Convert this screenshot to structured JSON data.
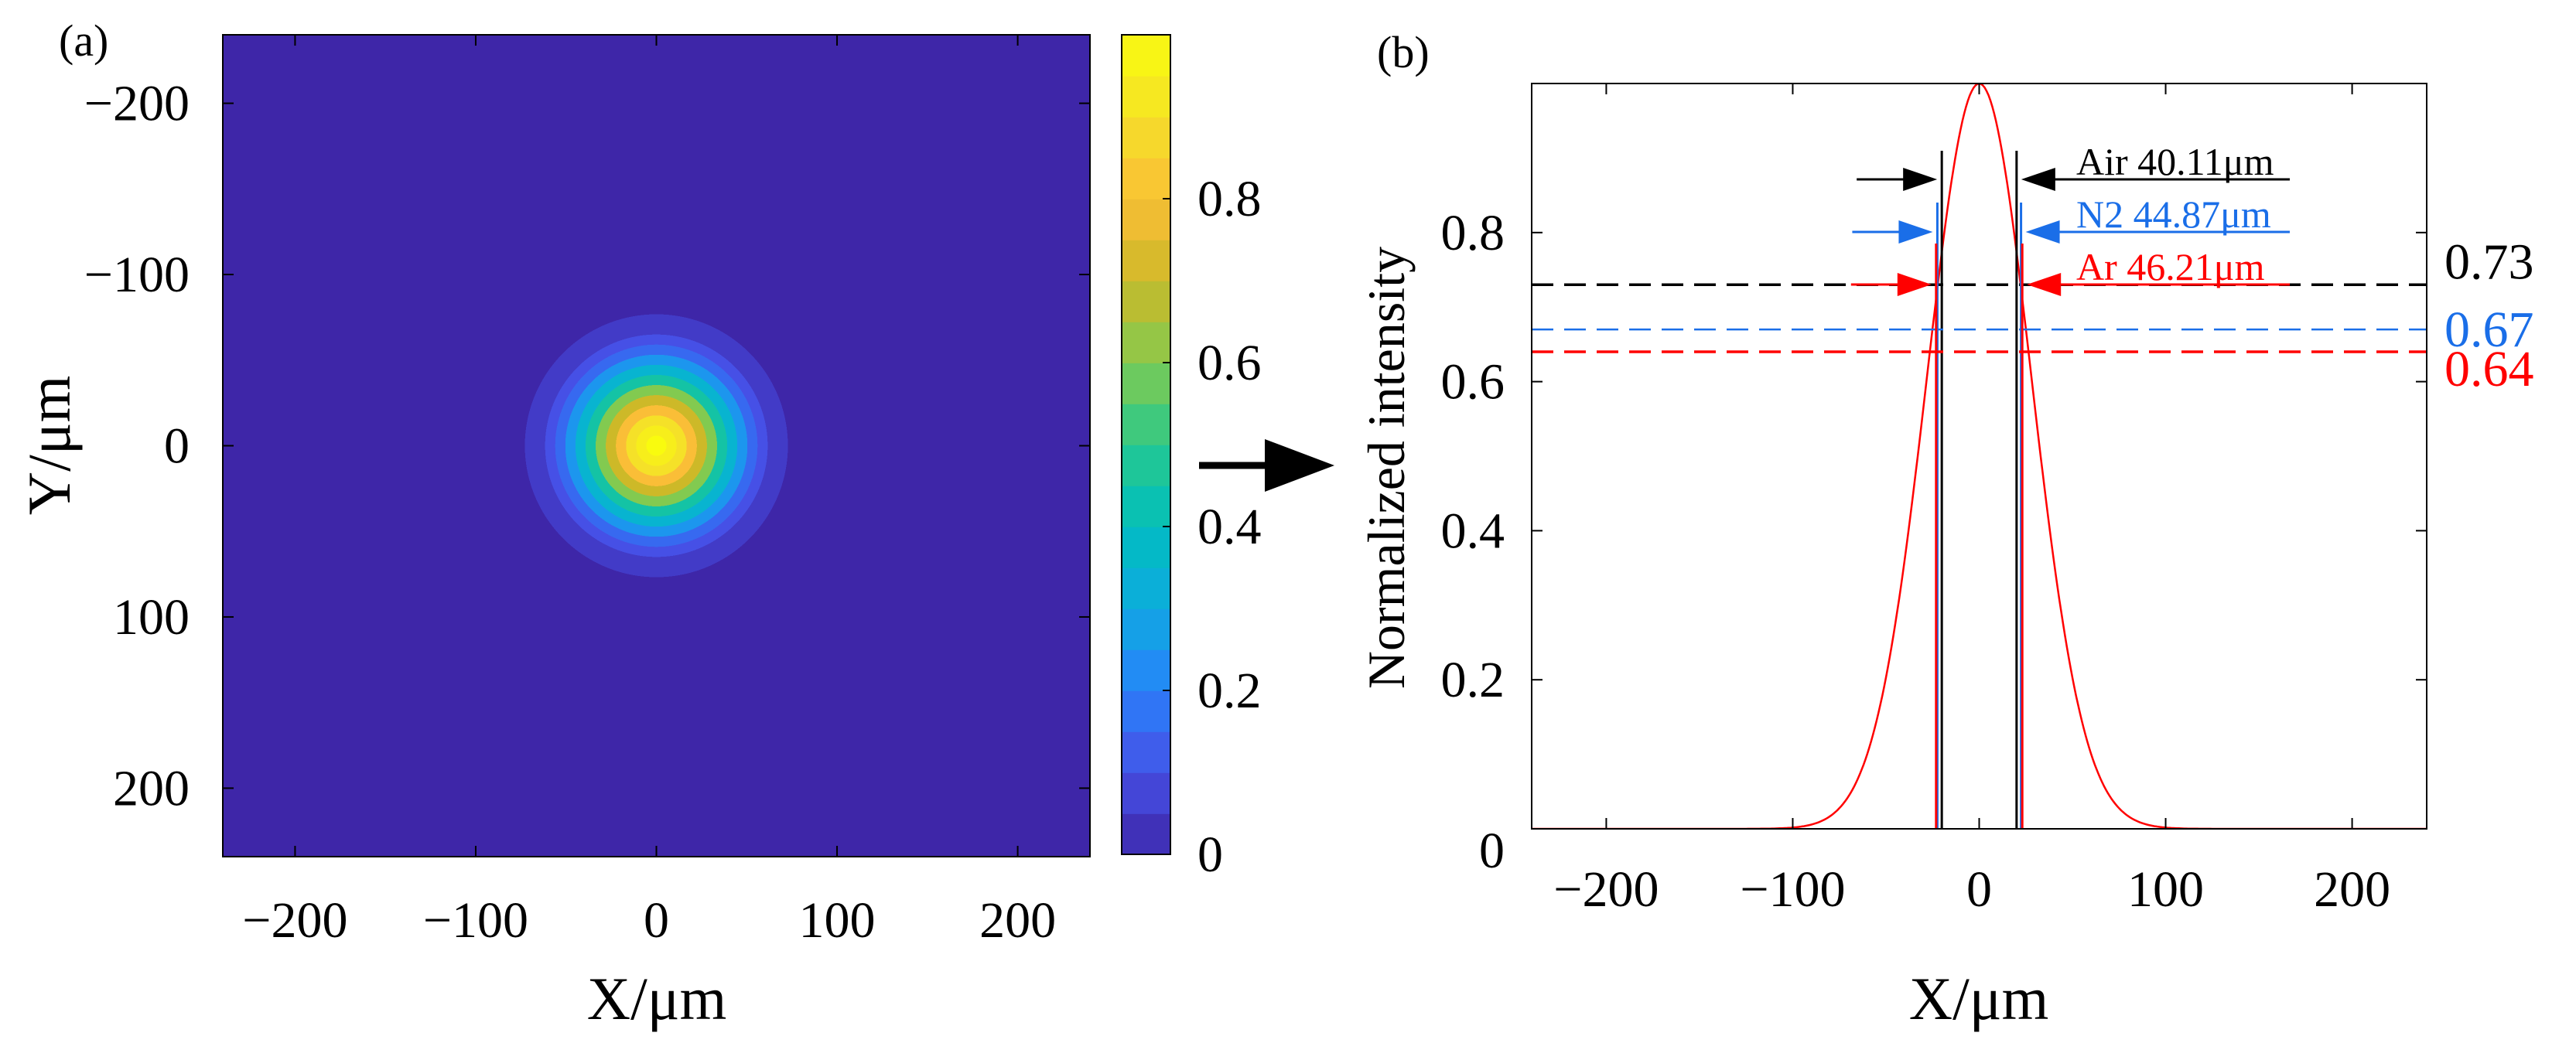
{
  "chart_data": [
    {
      "type": "heatmap",
      "panel_label": "(a)",
      "xlabel": "X/μm",
      "ylabel": "Y/μm",
      "xlim": [
        -240,
        240
      ],
      "ylim": [
        -240,
        240
      ],
      "y_reversed": true,
      "x_ticks": [
        -200,
        -100,
        0,
        100,
        200
      ],
      "y_ticks": [
        -200,
        -100,
        0,
        100,
        200
      ],
      "beam_center": [
        0,
        0
      ],
      "beam_sigma_um": 28,
      "colorbar": {
        "range": [
          0,
          1
        ],
        "ticks": [
          0,
          0.2,
          0.4,
          0.6,
          0.8
        ],
        "tick_labels": [
          "0",
          "0.2",
          "0.4",
          "0.6",
          "0.8"
        ],
        "colormap": "parula",
        "levels": 20
      }
    },
    {
      "type": "line",
      "panel_label": "(b)",
      "xlabel": "X/μm",
      "ylabel": "Normalized intensity",
      "xlim": [
        -240,
        240
      ],
      "ylim": [
        0,
        1
      ],
      "x_ticks": [
        -200,
        -100,
        0,
        100,
        200
      ],
      "y_ticks": [
        0,
        0.2,
        0.4,
        0.6,
        0.8
      ],
      "y_tick_labels": [
        "0",
        "0.2",
        "0.4",
        "0.6",
        "0.8"
      ],
      "profile": {
        "center": 0,
        "sigma_um": 28,
        "peak": 1.0,
        "color": "#ff0000"
      },
      "thresholds": [
        {
          "name": "Air",
          "value": 0.73,
          "value_label": "0.73",
          "width_um": 40.11,
          "label": "Air 40.11μm",
          "color": "#000000"
        },
        {
          "name": "N2",
          "value": 0.67,
          "value_label": "0.67",
          "width_um": 44.87,
          "label": "N2 44.87μm",
          "color": "#1a6ee8"
        },
        {
          "name": "Ar",
          "value": 0.64,
          "value_label": "0.64",
          "width_um": 46.21,
          "label": "Ar  46.21μm",
          "color": "#ff0000"
        }
      ]
    }
  ],
  "colors": {
    "parula_min": "#3e26a8",
    "parula_max": "#f9fb0e",
    "axis": "#000000"
  }
}
